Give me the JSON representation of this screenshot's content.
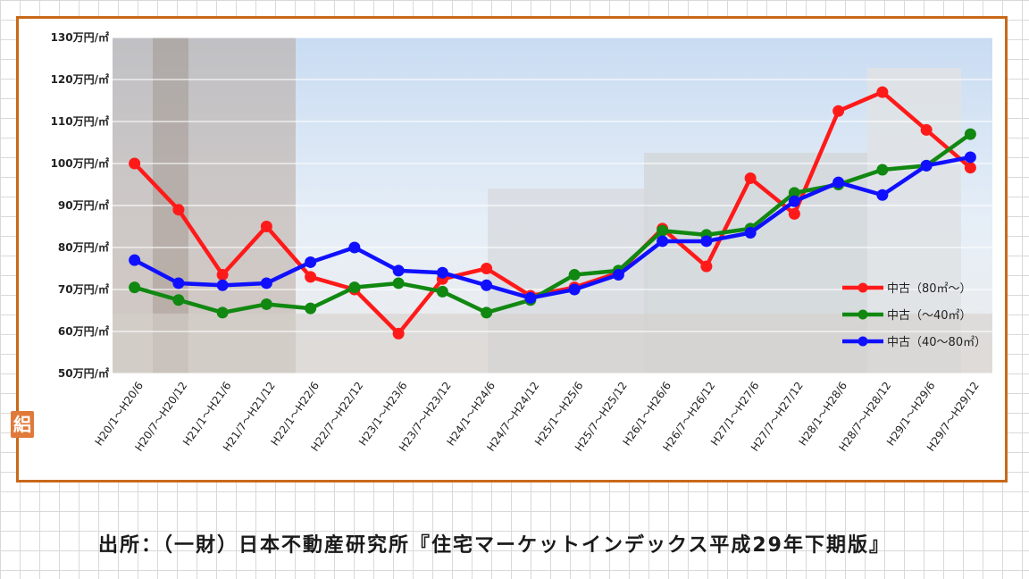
{
  "source_text": "出所：（一財）日本不動産研究所『住宅マーケットインデックス平成29年下期版』",
  "logo_icon": "logo-mark-icon",
  "logo_glyph": "絽",
  "chart_data": {
    "type": "line",
    "title": "",
    "xlabel": "",
    "ylabel": "",
    "ylim": [
      50,
      130
    ],
    "yticks": [
      50,
      60,
      70,
      80,
      90,
      100,
      110,
      120,
      130
    ],
    "ytick_suffix": "万円/㎡",
    "grid": true,
    "legend_position": "right",
    "categories": [
      "H20/1〜H20/6",
      "H20/7〜H20/12",
      "H21/1〜H21/6",
      "H21/7〜H21/12",
      "H22/1〜H22/6",
      "H22/7〜H22/12",
      "H23/1〜H23/6",
      "H23/7〜H23/12",
      "H24/1〜H24/6",
      "H24/7〜H24/12",
      "H25/1〜H25/6",
      "H25/7〜H25/12",
      "H26/1〜H26/6",
      "H26/7〜H26/12",
      "H27/1〜H27/6",
      "H27/7〜H27/12",
      "H28/1〜H28/6",
      "H28/7〜H28/12",
      "H29/1〜H29/6",
      "H29/7〜H29/12"
    ],
    "series": [
      {
        "name": "中古（80㎡〜）",
        "color": "#ff1a1a",
        "values": [
          100,
          89,
          73.5,
          85,
          73,
          70,
          59.5,
          72.5,
          75,
          68.5,
          70.5,
          74,
          84.5,
          75.5,
          96.5,
          88,
          112.5,
          117,
          108,
          99
        ]
      },
      {
        "name": "中古（〜40㎡）",
        "color": "#118811",
        "values": [
          70.5,
          67.5,
          64.5,
          66.5,
          65.5,
          70.5,
          71.5,
          69.5,
          64.5,
          67.5,
          73.5,
          74.5,
          84,
          83,
          84.5,
          93,
          95,
          98.5,
          99.5,
          107
        ]
      },
      {
        "name": "中古（40〜80㎡）",
        "color": "#1010ff",
        "values": [
          77,
          71.5,
          71,
          71.5,
          76.5,
          80,
          74.5,
          74,
          71,
          68,
          70,
          73.5,
          81.5,
          81.5,
          83.5,
          91,
          95.5,
          92.5,
          99.5,
          101.5
        ]
      }
    ]
  }
}
